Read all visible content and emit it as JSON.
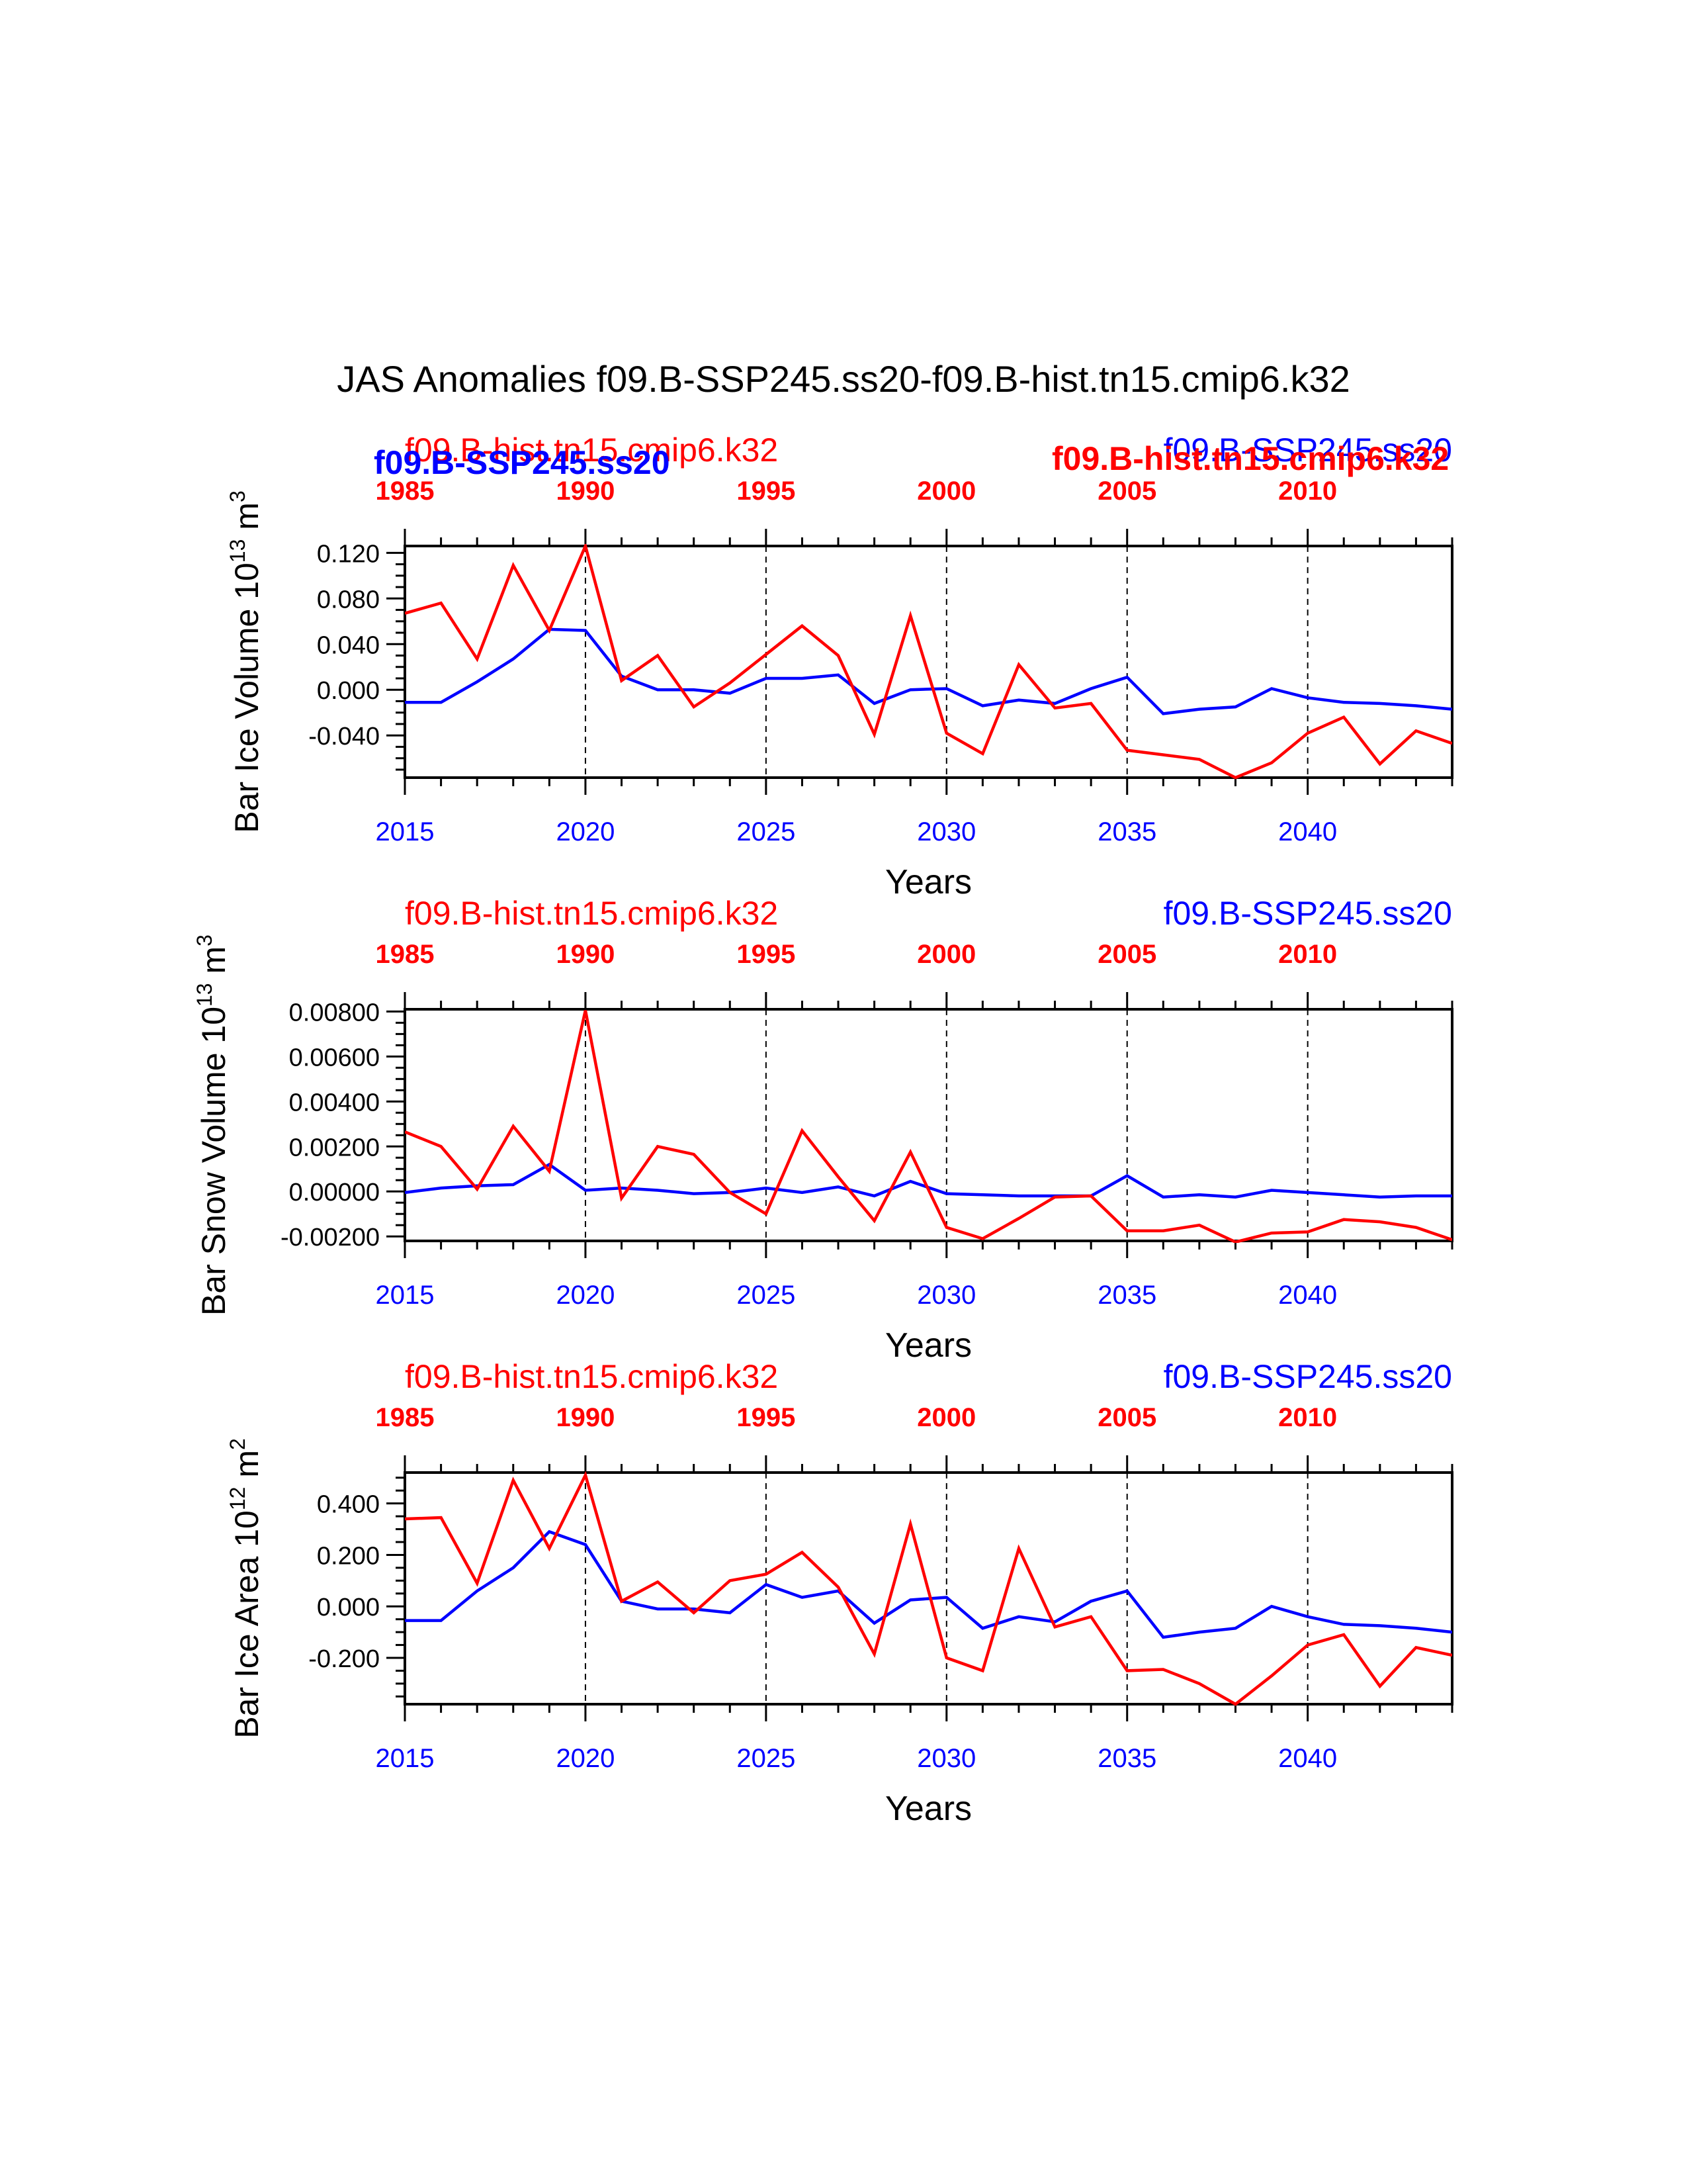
{
  "title": "JAS Anomalies f09.B-SSP245.ss20-f09.B-hist.tn15.cmip6.k32",
  "colors": {
    "ssp": "#0000ff",
    "hist": "#ff0000",
    "axis": "#000000"
  },
  "overlays": {
    "ssp_bold": "f09.B-SSP245.ss20",
    "hist_bold": "f09.B-hist.tn15.cmip6.k32"
  },
  "chart_data": [
    {
      "type": "line",
      "title": "",
      "ylabel": "Bar Ice Volume 10",
      "ylabel_exp": "13",
      "ylabel_unit": " m",
      "ylabel_unit_exp": "3",
      "xlabel": "Years",
      "top_left_label": "f09.B-hist.tn15.cmip6.k32",
      "top_right_label": "f09.B-SSP245.ss20",
      "bottom_x_ticks": [
        "2015",
        "2020",
        "2025",
        "2030",
        "2035",
        "2040"
      ],
      "top_x_ticks": [
        "1985",
        "1990",
        "1995",
        "2000",
        "2005",
        "2010"
      ],
      "y_tick_values": [
        0.12,
        0.08,
        0.04,
        0.0,
        -0.04
      ],
      "y_tick_labels": [
        "0.120",
        "0.080",
        "0.040",
        "0.000",
        "-0.040"
      ],
      "ylim": [
        -0.077,
        0.126
      ],
      "xlim": [
        2015,
        2044
      ],
      "x": [
        2015,
        2016,
        2017,
        2018,
        2019,
        2020,
        2021,
        2022,
        2023,
        2024,
        2025,
        2026,
        2027,
        2028,
        2029,
        2030,
        2031,
        2032,
        2033,
        2034,
        2035,
        2036,
        2037,
        2038,
        2039,
        2040,
        2041,
        2042,
        2043,
        2044
      ],
      "series": [
        {
          "name": "f09.B-SSP245.ss20",
          "color": "#0000ff",
          "values": [
            -0.011,
            -0.011,
            0.007,
            0.027,
            0.053,
            0.052,
            0.012,
            0.0,
            0.0,
            -0.003,
            0.01,
            0.01,
            0.013,
            -0.012,
            0.0,
            0.001,
            -0.014,
            -0.009,
            -0.012,
            0.001,
            0.011,
            -0.021,
            -0.017,
            -0.015,
            0.001,
            -0.007,
            -0.011,
            -0.012,
            -0.014,
            -0.017
          ]
        },
        {
          "name": "f09.B-hist.tn15.cmip6.k32",
          "color": "#ff0000",
          "values": [
            0.067,
            0.076,
            0.027,
            0.109,
            0.052,
            0.126,
            0.008,
            0.03,
            -0.015,
            0.006,
            0.031,
            0.056,
            0.03,
            -0.039,
            0.065,
            -0.038,
            -0.056,
            0.022,
            -0.016,
            -0.012,
            -0.053,
            -0.057,
            -0.061,
            -0.077,
            -0.064,
            -0.038,
            -0.024,
            -0.065,
            -0.036,
            -0.047
          ]
        }
      ]
    },
    {
      "type": "line",
      "title": "",
      "ylabel": "Bar Snow Volume 10",
      "ylabel_exp": "13",
      "ylabel_unit": " m",
      "ylabel_unit_exp": "3",
      "xlabel": "Years",
      "top_left_label": "f09.B-hist.tn15.cmip6.k32",
      "top_right_label": "f09.B-SSP245.ss20",
      "bottom_x_ticks": [
        "2015",
        "2020",
        "2025",
        "2030",
        "2035",
        "2040"
      ],
      "top_x_ticks": [
        "1985",
        "1990",
        "1995",
        "2000",
        "2005",
        "2010"
      ],
      "y_tick_values": [
        0.008,
        0.006,
        0.004,
        0.002,
        0.0,
        -0.002
      ],
      "y_tick_labels": [
        "0.00800",
        "0.00600",
        "0.00400",
        "0.00200",
        "0.00000",
        "-0.00200"
      ],
      "ylim": [
        -0.0022,
        0.0081
      ],
      "xlim": [
        2015,
        2044
      ],
      "x": [
        2015,
        2016,
        2017,
        2018,
        2019,
        2020,
        2021,
        2022,
        2023,
        2024,
        2025,
        2026,
        2027,
        2028,
        2029,
        2030,
        2031,
        2032,
        2033,
        2034,
        2035,
        2036,
        2037,
        2038,
        2039,
        2040,
        2041,
        2042,
        2043,
        2044
      ],
      "series": [
        {
          "name": "f09.B-SSP245.ss20",
          "color": "#0000ff",
          "values": [
            -5e-05,
            0.00015,
            0.00025,
            0.0003,
            0.0012,
            5e-05,
            0.00015,
            5e-05,
            -0.0001,
            -5e-05,
            0.00015,
            -5e-05,
            0.0002,
            -0.0002,
            0.00045,
            -0.0001,
            -0.00015,
            -0.0002,
            -0.0002,
            -0.0002,
            0.0007,
            -0.00025,
            -0.00015,
            -0.00025,
            5e-05,
            -5e-05,
            -0.00015,
            -0.00025,
            -0.0002,
            -0.0002
          ]
        },
        {
          "name": "f09.B-hist.tn15.cmip6.k32",
          "color": "#ff0000",
          "values": [
            0.00265,
            0.002,
            0.0001,
            0.0029,
            0.0009,
            0.00805,
            -0.0003,
            0.002,
            0.00165,
            -5e-05,
            -0.001,
            0.0027,
            0.00065,
            -0.0013,
            0.00175,
            -0.0016,
            -0.0021,
            -0.0012,
            -0.00025,
            -0.0002,
            -0.00175,
            -0.00175,
            -0.0015,
            -0.00225,
            -0.00185,
            -0.0018,
            -0.00125,
            -0.00135,
            -0.0016,
            -0.00215
          ]
        }
      ]
    },
    {
      "type": "line",
      "title": "",
      "ylabel": "Bar Ice Area 10",
      "ylabel_exp": "12",
      "ylabel_unit": " m",
      "ylabel_unit_exp": "2",
      "xlabel": "Years",
      "top_left_label": "f09.B-hist.tn15.cmip6.k32",
      "top_right_label": "f09.B-SSP245.ss20",
      "bottom_x_ticks": [
        "2015",
        "2020",
        "2025",
        "2030",
        "2035",
        "2040"
      ],
      "top_x_ticks": [
        "1985",
        "1990",
        "1995",
        "2000",
        "2005",
        "2010"
      ],
      "y_tick_values": [
        0.4,
        0.2,
        0.0,
        -0.2
      ],
      "y_tick_labels": [
        "0.400",
        "0.200",
        "0.000",
        "-0.200"
      ],
      "ylim": [
        -0.38,
        0.52
      ],
      "xlim": [
        2015,
        2044
      ],
      "x": [
        2015,
        2016,
        2017,
        2018,
        2019,
        2020,
        2021,
        2022,
        2023,
        2024,
        2025,
        2026,
        2027,
        2028,
        2029,
        2030,
        2031,
        2032,
        2033,
        2034,
        2035,
        2036,
        2037,
        2038,
        2039,
        2040,
        2041,
        2042,
        2043,
        2044
      ],
      "series": [
        {
          "name": "f09.B-SSP245.ss20",
          "color": "#0000ff",
          "values": [
            -0.055,
            -0.055,
            0.06,
            0.15,
            0.29,
            0.24,
            0.02,
            -0.01,
            -0.01,
            -0.025,
            0.085,
            0.035,
            0.06,
            -0.065,
            0.025,
            0.035,
            -0.085,
            -0.04,
            -0.06,
            0.02,
            0.06,
            -0.12,
            -0.1,
            -0.085,
            0.0,
            -0.04,
            -0.07,
            -0.075,
            -0.085,
            -0.1
          ]
        },
        {
          "name": "f09.B-hist.tn15.cmip6.k32",
          "color": "#ff0000",
          "values": [
            0.34,
            0.345,
            0.09,
            0.49,
            0.225,
            0.51,
            0.02,
            0.095,
            -0.025,
            0.1,
            0.125,
            0.21,
            0.075,
            -0.185,
            0.32,
            -0.2,
            -0.25,
            0.225,
            -0.08,
            -0.04,
            -0.25,
            -0.245,
            -0.3,
            -0.38,
            -0.27,
            -0.15,
            -0.11,
            -0.31,
            -0.16,
            -0.19
          ]
        }
      ]
    }
  ]
}
